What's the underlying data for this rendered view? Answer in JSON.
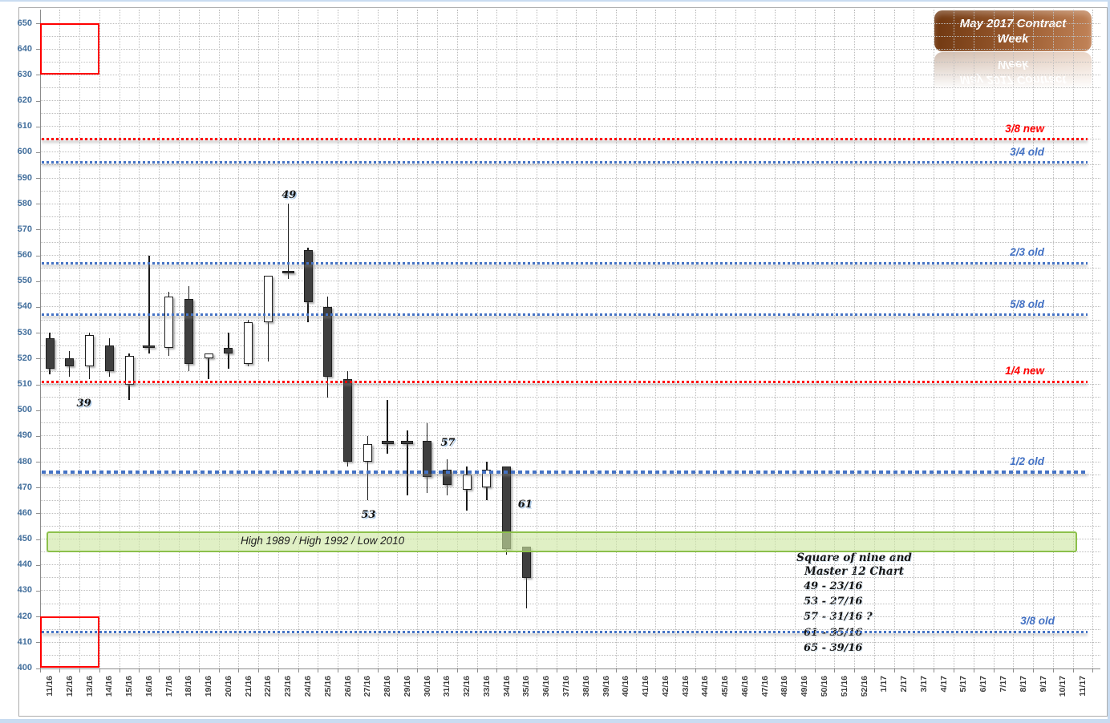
{
  "title_box": {
    "line1": "May 2017 Contract",
    "line2": "Week"
  },
  "colors": {
    "grid": "#BDBDBD",
    "y_label_blue": "#44709D",
    "x_label_gray": "#3F3F3F",
    "level_red": "#FF0000",
    "level_blue": "#4472C4",
    "candle_fill": "#3F3F3F",
    "band_fill": "#CDE6A2",
    "band_border": "#8CC04B",
    "box_red": "#FF0000",
    "title_gradient_left": "#6F3710",
    "title_gradient_right": "#C28459"
  },
  "chart_data": {
    "type": "candlestick",
    "title": "May 2017 Contract Week",
    "xlabel": "Week",
    "ylabel": "",
    "ylim": [
      400,
      650
    ],
    "y_tick_step": 10,
    "y_minor_step": 5,
    "grid": true,
    "y_ticks": [
      400,
      410,
      420,
      430,
      440,
      450,
      460,
      470,
      480,
      490,
      500,
      510,
      520,
      530,
      540,
      550,
      560,
      570,
      580,
      590,
      600,
      610,
      620,
      630,
      640,
      650
    ],
    "x_categories": [
      "11/16",
      "12/16",
      "13/16",
      "14/16",
      "15/16",
      "16/16",
      "17/16",
      "18/16",
      "19/16",
      "20/16",
      "21/16",
      "22/16",
      "23/16",
      "24/16",
      "25/16",
      "26/16",
      "27/16",
      "28/16",
      "29/16",
      "30/16",
      "31/16",
      "32/16",
      "33/16",
      "34/16",
      "35/16",
      "36/16",
      "37/16",
      "38/16",
      "39/16",
      "40/16",
      "41/16",
      "42/16",
      "43/16",
      "44/16",
      "45/16",
      "46/16",
      "47/16",
      "48/16",
      "49/16",
      "50/16",
      "51/16",
      "52/16",
      "1/17",
      "2/17",
      "3/17",
      "4/17",
      "5/17",
      "6/17",
      "7/17",
      "8/17",
      "9/17",
      "10/17",
      "11/17"
    ],
    "candles": [
      {
        "week": "11/16",
        "open": 528,
        "high": 530,
        "low": 514,
        "close": 516,
        "direction": "down"
      },
      {
        "week": "12/16",
        "open": 520,
        "high": 523,
        "low": 513,
        "close": 517,
        "direction": "down"
      },
      {
        "week": "13/16",
        "open": 517,
        "high": 530,
        "low": 512,
        "close": 529,
        "direction": "up"
      },
      {
        "week": "14/16",
        "open": 525,
        "high": 528,
        "low": 513,
        "close": 515,
        "direction": "down"
      },
      {
        "week": "15/16",
        "open": 510,
        "high": 522,
        "low": 504,
        "close": 521,
        "direction": "up"
      },
      {
        "week": "16/16",
        "open": 525,
        "high": 560,
        "low": 522,
        "close": 524,
        "direction": "down"
      },
      {
        "week": "17/16",
        "open": 524,
        "high": 546,
        "low": 521,
        "close": 544,
        "direction": "up"
      },
      {
        "week": "18/16",
        "open": 543,
        "high": 548,
        "low": 515,
        "close": 518,
        "direction": "down"
      },
      {
        "week": "19/16",
        "open": 520,
        "high": 522,
        "low": 512,
        "close": 522,
        "direction": "up"
      },
      {
        "week": "20/16",
        "open": 524,
        "high": 530,
        "low": 516,
        "close": 522,
        "direction": "down"
      },
      {
        "week": "21/16",
        "open": 518,
        "high": 535,
        "low": 517,
        "close": 534,
        "direction": "up"
      },
      {
        "week": "22/16",
        "open": 534,
        "high": 552,
        "low": 519,
        "close": 552,
        "direction": "up"
      },
      {
        "week": "23/16",
        "open": 554,
        "high": 580,
        "low": 551,
        "close": 553,
        "direction": "down"
      },
      {
        "week": "24/16",
        "open": 562,
        "high": 563,
        "low": 534,
        "close": 542,
        "direction": "down"
      },
      {
        "week": "25/16",
        "open": 540,
        "high": 544,
        "low": 505,
        "close": 513,
        "direction": "down"
      },
      {
        "week": "26/16",
        "open": 512,
        "high": 515,
        "low": 478,
        "close": 480,
        "direction": "down"
      },
      {
        "week": "27/16",
        "open": 480,
        "high": 490,
        "low": 465,
        "close": 487,
        "direction": "up"
      },
      {
        "week": "28/16",
        "open": 488,
        "high": 504,
        "low": 483,
        "close": 487,
        "direction": "down"
      },
      {
        "week": "29/16",
        "open": 488,
        "high": 492,
        "low": 467,
        "close": 487,
        "direction": "down"
      },
      {
        "week": "30/16",
        "open": 488,
        "high": 495,
        "low": 468,
        "close": 474,
        "direction": "down"
      },
      {
        "week": "31/16",
        "open": 477,
        "high": 481,
        "low": 467,
        "close": 471,
        "direction": "down"
      },
      {
        "week": "32/16",
        "open": 469,
        "high": 478,
        "low": 461,
        "close": 475,
        "direction": "up"
      },
      {
        "week": "33/16",
        "open": 470,
        "high": 480,
        "low": 465,
        "close": 477,
        "direction": "up"
      },
      {
        "week": "34/16",
        "open": 478,
        "high": 478,
        "low": 444,
        "close": 446,
        "direction": "down"
      },
      {
        "week": "35/16",
        "open": 447,
        "high": 447,
        "low": 423,
        "close": 435,
        "direction": "down"
      }
    ],
    "levels": [
      {
        "label": "3/8 new",
        "value": 605,
        "color": "#FF0000",
        "weight": "normal"
      },
      {
        "label": "3/4 old",
        "value": 596,
        "color": "#4472C4",
        "weight": "normal"
      },
      {
        "label": "2/3 old",
        "value": 557,
        "color": "#4472C4",
        "weight": "normal"
      },
      {
        "label": "5/8 old",
        "value": 537,
        "color": "#4472C4",
        "weight": "normal"
      },
      {
        "label": "1/4 new",
        "value": 511,
        "color": "#FF0000",
        "weight": "normal"
      },
      {
        "label": "1/2 old",
        "value": 476,
        "color": "#4472C4",
        "weight": "bold"
      },
      {
        "label": "3/8 old",
        "value": 414,
        "color": "#4472C4",
        "weight": "normal",
        "label_right": 1315
      }
    ],
    "band": {
      "label": "High 1989 / High 1992 / Low 2010",
      "from": 445,
      "to": 453
    },
    "boxes": [
      {
        "from_week": "11/16",
        "to_week": "13/16",
        "from": 630,
        "to": 650
      },
      {
        "from_week": "11/16",
        "to_week": "13/16",
        "from": 400,
        "to": 420
      }
    ],
    "point_labels": [
      {
        "text": "49",
        "week": "23/16",
        "value": 583,
        "dx": 0
      },
      {
        "text": "39",
        "week": "13/16",
        "value": 502,
        "dx": -8
      },
      {
        "text": "53",
        "week": "27/16",
        "value": 459,
        "dx": 0
      },
      {
        "text": "57",
        "week": "31/16",
        "value": 487,
        "dx": 0
      },
      {
        "text": "61",
        "week": "34/16",
        "value": 463,
        "dx": 22
      }
    ],
    "note": {
      "title_line1": "Square of nine and",
      "title_line2": "Master 12 Chart",
      "items": [
        "49 - 23/16",
        "53 - 27/16",
        "57 - 31/16 ?",
        "61 - 35/16",
        "65 - 39/16"
      ]
    }
  }
}
